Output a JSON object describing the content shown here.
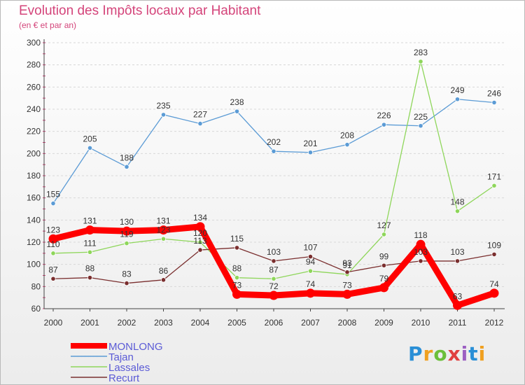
{
  "title": "Evolution des Impôts locaux par Habitant",
  "subtitle": "(en € et par an)",
  "logo_text": "Proxiti",
  "chart_data": {
    "type": "line",
    "title": "Evolution des Impôts locaux par Habitant",
    "subtitle": "(en € et par an)",
    "x": [
      "2000",
      "2001",
      "2002",
      "2003",
      "2004",
      "2005",
      "2006",
      "2007",
      "2008",
      "2009",
      "2010",
      "2011",
      "2012"
    ],
    "ylim": [
      60,
      300
    ],
    "yticks": [
      60,
      80,
      100,
      120,
      140,
      160,
      180,
      200,
      220,
      240,
      260,
      280,
      300
    ],
    "legend_position": "bottom-left",
    "series": [
      {
        "name": "MONLONG",
        "color": "#ff0000",
        "values": [
          123,
          131,
          130,
          131,
          134,
          73,
          72,
          74,
          73,
          79,
          118,
          63,
          74
        ]
      },
      {
        "name": "Tajan",
        "color": "#5b9bd5",
        "values": [
          155,
          205,
          188,
          235,
          227,
          238,
          202,
          201,
          208,
          226,
          225,
          249,
          246
        ]
      },
      {
        "name": "Lassales",
        "color": "#8ed65a",
        "values": [
          110,
          111,
          119,
          123,
          120,
          88,
          87,
          94,
          91,
          127,
          283,
          148,
          171
        ]
      },
      {
        "name": "Recurt",
        "color": "#7a2e2e",
        "values": [
          87,
          88,
          83,
          86,
          113,
          115,
          103,
          107,
          93,
          99,
          103,
          103,
          109
        ]
      }
    ]
  }
}
